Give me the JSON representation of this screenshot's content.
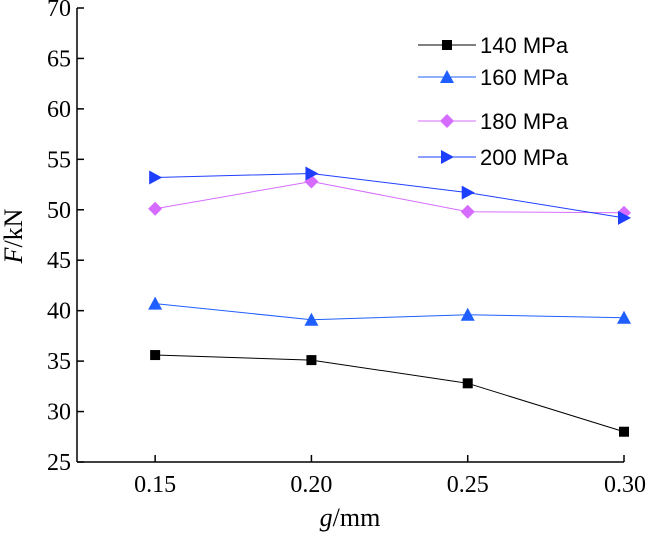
{
  "chart_data": {
    "type": "line",
    "title": "",
    "xlabel_italic": "g",
    "xlabel_unit": "/mm",
    "ylabel_italic": "F",
    "ylabel_unit": "/kN",
    "x": [
      0.15,
      0.2,
      0.25,
      0.3
    ],
    "x_tick_labels": [
      "0.15",
      "0.20",
      "0.25",
      "0.30"
    ],
    "xlim": [
      0.125,
      0.3
    ],
    "ylim": [
      25,
      70
    ],
    "y_ticks": [
      25,
      30,
      35,
      40,
      45,
      50,
      55,
      60,
      65,
      70
    ],
    "y_tick_labels": [
      "25",
      "30",
      "35",
      "40",
      "45",
      "50",
      "55",
      "60",
      "65",
      "70"
    ],
    "grid": false,
    "legend_position": "top-right",
    "series": [
      {
        "name": "140 MPa",
        "values": [
          35.6,
          35.1,
          32.8,
          28.0
        ],
        "color": "#000000",
        "marker": "square",
        "line_color": "#000000"
      },
      {
        "name": "160 MPa",
        "values": [
          40.7,
          39.1,
          39.6,
          39.3
        ],
        "color": "#1f5fff",
        "marker": "triangle-up",
        "line_color": "#1f5fff"
      },
      {
        "name": "180 MPa",
        "values": [
          50.1,
          52.8,
          49.8,
          49.7
        ],
        "color": "#d66cff",
        "marker": "diamond",
        "line_color": "#d66cff"
      },
      {
        "name": "200 MPa",
        "values": [
          53.2,
          53.6,
          51.7,
          49.2
        ],
        "color": "#1f3fff",
        "marker": "triangle-right",
        "line_color": "#1f3fff"
      }
    ]
  }
}
